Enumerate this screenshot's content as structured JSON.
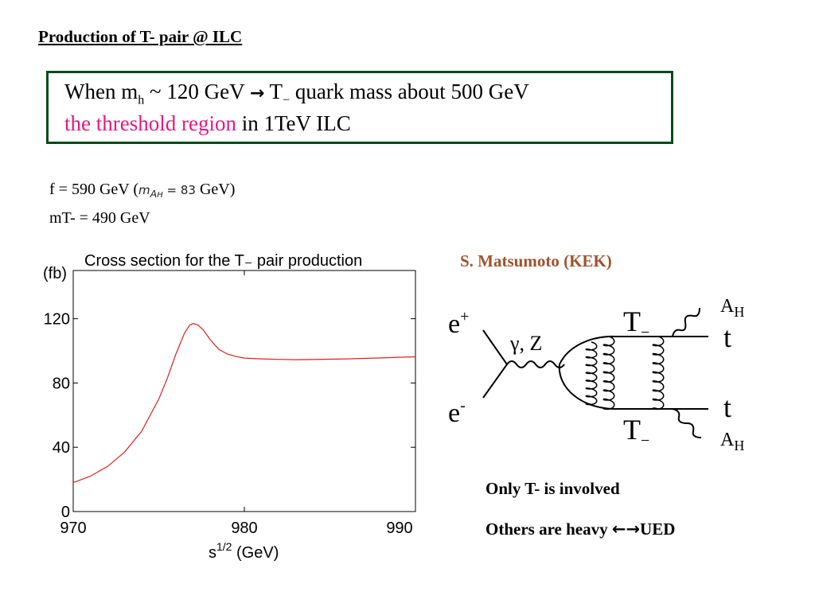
{
  "slide": {
    "title": "Production of  T- pair @ ILC",
    "box": {
      "line1_pre": "When m",
      "line1_sub": "h",
      "line1_mid": " ~ 120 GeV ",
      "line1_arrow": "→",
      "line1_T": " T",
      "line1_Tsub": "−",
      "line1_post": " quark mass about 500 GeV",
      "line2_highlight": "the threshold region",
      "line2_rest": " in 1TeV ILC"
    },
    "params": {
      "line1_pre": "f = 590 GeV (",
      "line1_math_m": "m",
      "line1_math_sub": "A",
      "line1_math_subsub": "H",
      "line1_math_eq": " = 83",
      "line1_post": " GeV)",
      "line2": "mT- = 490 GeV"
    },
    "credit": "S. Matsumoto (KEK)",
    "notes": {
      "note1": "Only T- is involved",
      "note2_pre": "Others are heavy  ",
      "note2_arrow": "←→",
      "note2_post": "UED"
    }
  },
  "chart_data": {
    "type": "line",
    "title": "Cross section for the T₋ pair production",
    "ylabel": "(fb)",
    "xlabel": "s",
    "xlabel_sup": "1/2",
    "xlabel_unit": " (GeV)",
    "xlim": [
      970,
      990
    ],
    "ylim": [
      0,
      150
    ],
    "xticks": [
      970,
      980,
      990
    ],
    "yticks": [
      0,
      40,
      80,
      120
    ],
    "grid": false,
    "line_color": "#e02020",
    "series": [
      {
        "x": [
          970,
          971,
          972,
          973,
          974,
          975,
          975.5,
          976,
          976.5,
          976.8,
          977,
          977.3,
          977.6,
          978,
          978.5,
          979,
          979.5,
          980,
          981,
          982,
          983,
          984,
          985,
          986,
          987,
          988,
          989,
          990
        ],
        "values": [
          18,
          22,
          28,
          37,
          50,
          70,
          83,
          98,
          111,
          116,
          117,
          116,
          113,
          107,
          101,
          98,
          96.5,
          95.5,
          95,
          94.7,
          94.5,
          94.6,
          94.8,
          95,
          95.3,
          95.6,
          96,
          96.3
        ]
      }
    ]
  },
  "diagram": {
    "e_plus": "e",
    "e_plus_sup": "+",
    "e_minus": "e",
    "e_minus_sup": "-",
    "boson": "γ, Z",
    "T_top": "T",
    "T_top_sub": "−",
    "T_bottom": "T",
    "T_bottom_sub": "−",
    "t_top": "t",
    "t_bottom": "t",
    "AH_top": "A",
    "AH_top_sub": "H",
    "AH_bottom": "A",
    "AH_bottom_sub": "H"
  }
}
